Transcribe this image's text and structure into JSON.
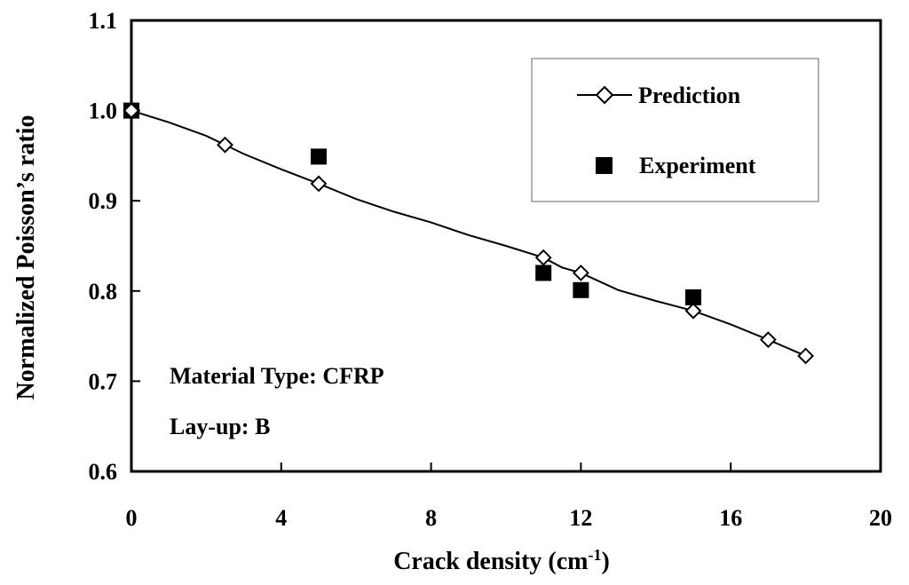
{
  "chart_data": {
    "type": "scatter",
    "title": "",
    "xlabel_main": "Crack density (cm",
    "xlabel_sup": "-1",
    "xlabel_close": ")",
    "ylabel": "Normalized Poisson’s ratio",
    "xlim": [
      0,
      20
    ],
    "ylim": [
      0.6,
      1.1
    ],
    "x_ticks": [
      0,
      4,
      8,
      12,
      16,
      20
    ],
    "y_ticks": [
      0.6,
      0.7,
      0.8,
      0.9,
      1.0,
      1.1
    ],
    "x_tick_labels": [
      "0",
      "4",
      "8",
      "12",
      "16",
      "20"
    ],
    "y_tick_labels": [
      "0.6",
      "0.7",
      "0.8",
      "0.9",
      "1.0",
      "1.1"
    ],
    "grid": false,
    "legend_position": "top-right",
    "series": [
      {
        "name": "Prediction",
        "style": "line-with-open-diamonds",
        "line_x": [
          0,
          1,
          2,
          2.5,
          3,
          4,
          5,
          6,
          7,
          8,
          9,
          10,
          11,
          11.5,
          12,
          13,
          14,
          15,
          16,
          17,
          18
        ],
        "line_y": [
          1.0,
          0.987,
          0.972,
          0.962,
          0.952,
          0.935,
          0.919,
          0.902,
          0.888,
          0.876,
          0.862,
          0.85,
          0.837,
          0.826,
          0.82,
          0.801,
          0.789,
          0.778,
          0.763,
          0.746,
          0.728
        ],
        "marker_x": [
          0,
          2.5,
          5,
          11,
          12,
          15,
          17,
          18
        ],
        "marker_y": [
          1.0,
          0.962,
          0.919,
          0.837,
          0.82,
          0.778,
          0.746,
          0.728
        ]
      },
      {
        "name": "Experiment",
        "style": "filled-squares",
        "x": [
          0,
          5,
          11,
          12,
          15
        ],
        "y": [
          1.0,
          0.949,
          0.82,
          0.801,
          0.793
        ]
      }
    ],
    "annotations": [
      "Material Type: CFRP",
      "Lay-up: B"
    ]
  }
}
